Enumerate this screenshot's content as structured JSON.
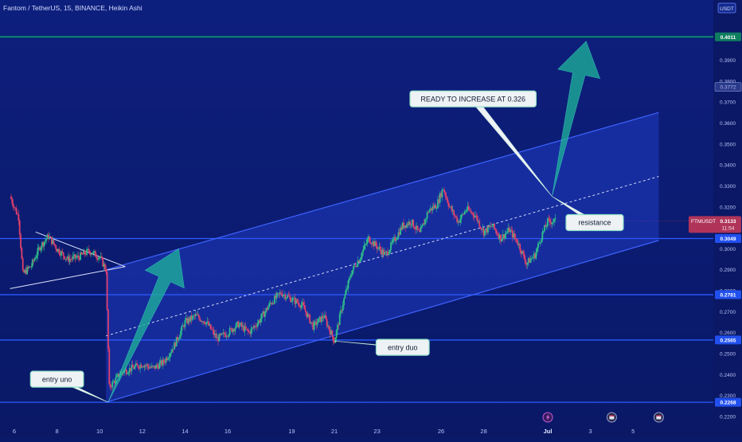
{
  "header": {
    "title": "Fantom / TetherUS, 15, BINANCE, Heikin Ashi",
    "currency_button": "USDT"
  },
  "chart_data": {
    "type": "candlestick",
    "symbol": "FTMUSDT",
    "ylim": [
      0.22,
      0.405
    ],
    "y_ticks": [
      "0.3900",
      "0.3800",
      "0.3700",
      "0.3600",
      "0.3500",
      "0.3400",
      "0.3300",
      "0.3200",
      "0.3000",
      "0.2900",
      "0.2800",
      "0.2700",
      "0.2600",
      "0.2500",
      "0.2400",
      "0.2300",
      "0.2200"
    ],
    "x_ticks": [
      "6",
      "8",
      "10",
      "12",
      "14",
      "16",
      "19",
      "21",
      "23",
      "26",
      "28",
      "Jul",
      "3",
      "5"
    ],
    "x_tick_positions": [
      0,
      2,
      4,
      6,
      8,
      10,
      13,
      15,
      17,
      20,
      22,
      25,
      27,
      29
    ],
    "xlim": [
      0,
      30
    ],
    "horizontal_levels": [
      {
        "price": 0.4011,
        "label": "0.4011",
        "color": "#0b8a6a"
      },
      {
        "price": 0.3049,
        "label": "0.3049",
        "color": "#2a5bff"
      },
      {
        "price": 0.2781,
        "label": "0.2781",
        "color": "#2a5bff"
      },
      {
        "price": 0.2565,
        "label": "0.2565",
        "color": "#2a5bff"
      },
      {
        "price": 0.2268,
        "label": "0.2268",
        "color": "#2a5bff"
      }
    ],
    "last_price": {
      "symbol": "FTMUSDT",
      "price": "0.3133",
      "countdown": "11:54",
      "color": "#b0345a"
    },
    "hidden_price_label": "0.3772",
    "channel": {
      "lower": [
        [
          4.3,
          0.2268
        ],
        [
          30.2,
          0.304
        ]
      ],
      "upper": [
        [
          4.3,
          0.29
        ],
        [
          30.2,
          0.365
        ]
      ],
      "mid": [
        [
          4.3,
          0.2585
        ],
        [
          30.2,
          0.3345
        ]
      ]
    },
    "triangle": {
      "upper": [
        [
          1.0,
          0.308
        ],
        [
          5.2,
          0.2915
        ]
      ],
      "lower": [
        [
          -0.2,
          0.281
        ],
        [
          5.2,
          0.2915
        ]
      ]
    },
    "arrows": [
      {
        "from": [
          4.4,
          0.2268
        ],
        "to": [
          7.7,
          0.3
        ],
        "color": "#1fb59a"
      },
      {
        "from": [
          25.2,
          0.325
        ],
        "to": [
          26.8,
          0.399
        ],
        "color": "#1fb59a"
      }
    ],
    "annotations": [
      {
        "text": "entry uno",
        "x": 2.0,
        "y": 0.2378,
        "pointer": [
          4.4,
          0.2268
        ]
      },
      {
        "text": "entry duo",
        "x": 18.2,
        "y": 0.253,
        "pointer": [
          15.0,
          0.256
        ]
      },
      {
        "text": "READY TO INCREASE AT 0.326",
        "x": 21.5,
        "y": 0.3715,
        "pointer": [
          25.2,
          0.325
        ]
      },
      {
        "text": "resistance",
        "x": 27.2,
        "y": 0.3125,
        "pointer": [
          25.2,
          0.325
        ]
      }
    ],
    "event_icons": [
      25.0,
      28.0,
      30.2
    ],
    "price_path": [
      [
        -0.2,
        0.325
      ],
      [
        0.2,
        0.315
      ],
      [
        0.4,
        0.288
      ],
      [
        0.8,
        0.292
      ],
      [
        1.2,
        0.301
      ],
      [
        1.6,
        0.306
      ],
      [
        2.0,
        0.3
      ],
      [
        2.5,
        0.295
      ],
      [
        3.0,
        0.296
      ],
      [
        3.5,
        0.299
      ],
      [
        4.0,
        0.296
      ],
      [
        4.3,
        0.29
      ],
      [
        4.35,
        0.27
      ],
      [
        4.45,
        0.234
      ],
      [
        4.7,
        0.237
      ],
      [
        5.0,
        0.241
      ],
      [
        5.5,
        0.243
      ],
      [
        6.0,
        0.245
      ],
      [
        6.5,
        0.243
      ],
      [
        7.0,
        0.246
      ],
      [
        7.5,
        0.254
      ],
      [
        8.0,
        0.265
      ],
      [
        8.5,
        0.268
      ],
      [
        9.0,
        0.265
      ],
      [
        9.5,
        0.257
      ],
      [
        10.0,
        0.26
      ],
      [
        10.5,
        0.264
      ],
      [
        11.0,
        0.26
      ],
      [
        11.5,
        0.266
      ],
      [
        12.0,
        0.274
      ],
      [
        12.5,
        0.279
      ],
      [
        13.0,
        0.276
      ],
      [
        13.5,
        0.273
      ],
      [
        14.0,
        0.263
      ],
      [
        14.5,
        0.268
      ],
      [
        15.0,
        0.256
      ],
      [
        15.4,
        0.274
      ],
      [
        15.8,
        0.289
      ],
      [
        16.2,
        0.296
      ],
      [
        16.6,
        0.305
      ],
      [
        17.0,
        0.301
      ],
      [
        17.4,
        0.297
      ],
      [
        17.8,
        0.304
      ],
      [
        18.2,
        0.311
      ],
      [
        18.6,
        0.313
      ],
      [
        19.0,
        0.307
      ],
      [
        19.4,
        0.318
      ],
      [
        19.8,
        0.321
      ],
      [
        20.1,
        0.329
      ],
      [
        20.4,
        0.32
      ],
      [
        20.8,
        0.313
      ],
      [
        21.2,
        0.319
      ],
      [
        21.6,
        0.316
      ],
      [
        22.0,
        0.308
      ],
      [
        22.4,
        0.311
      ],
      [
        22.8,
        0.305
      ],
      [
        23.2,
        0.309
      ],
      [
        23.6,
        0.303
      ],
      [
        24.0,
        0.293
      ],
      [
        24.4,
        0.297
      ],
      [
        24.7,
        0.306
      ],
      [
        25.0,
        0.313
      ],
      [
        25.4,
        0.3133
      ]
    ]
  }
}
